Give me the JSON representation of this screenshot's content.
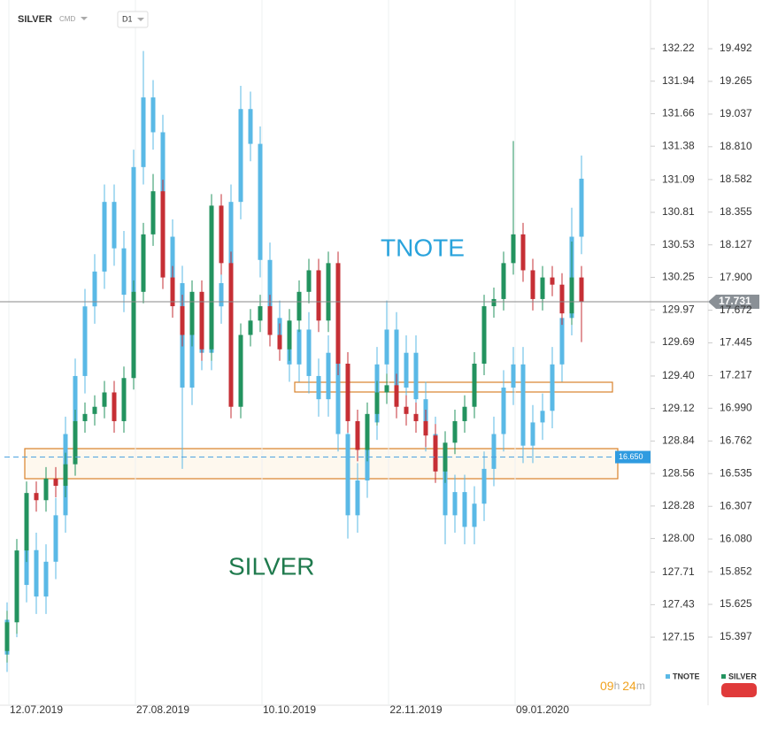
{
  "header": {
    "symbol": "SILVER",
    "market": "CMD",
    "interval": "D1"
  },
  "timer": {
    "hours": "09",
    "h": "h",
    "minutes": "24",
    "m": "m"
  },
  "chart_data": {
    "type": "candlestick",
    "categories": [
      null,
      null,
      null,
      "12.07.2019",
      null,
      null,
      null,
      null,
      null,
      null,
      null,
      null,
      null,
      null,
      null,
      null,
      "27.08.2019",
      null,
      null,
      null,
      null,
      null,
      null,
      null,
      null,
      null,
      null,
      null,
      null,
      "10.10.2019",
      null,
      null,
      null,
      null,
      null,
      null,
      null,
      null,
      null,
      null,
      null,
      null,
      "22.11.2019",
      null,
      null,
      null,
      null,
      null,
      null,
      null,
      null,
      null,
      null,
      null,
      null,
      "09.01.2020",
      null,
      null,
      null,
      null
    ],
    "ylim": [
      126.617,
      132.487
    ],
    "yticks": [
      132.22,
      131.94,
      131.66,
      131.38,
      131.09,
      130.81,
      130.53,
      130.25,
      129.97,
      129.69,
      {
        "value": 129.4,
        "label": "129.40"
      },
      129.12,
      128.84,
      128.56,
      128.28,
      {
        "value": 128,
        "label": "128.00"
      },
      127.71,
      127.43,
      127.15
    ],
    "y2lim": [
      14.966,
      19.708
    ],
    "y2ticks": [
      19.492,
      19.265,
      19.037,
      {
        "value": 18.81,
        "label": "18.810"
      },
      18.582,
      18.355,
      18.127,
      {
        "value": 17.9,
        "label": "17.900"
      },
      17.672,
      17.445,
      17.217,
      {
        "value": 16.99,
        "label": "16.990"
      },
      16.762,
      16.535,
      16.307,
      {
        "value": 16.08,
        "label": "16.080"
      },
      15.852,
      15.625,
      15.397
    ],
    "series": [
      {
        "name": "TNOTE",
        "axis": "y",
        "color": "#5ab9e6",
        "open": [
          127.0,
          127.3,
          127.6,
          127.9,
          127.5,
          127.8,
          128.2,
          128.9,
          129.4,
          130.0,
          130.3,
          130.9,
          130.5,
          130.1,
          131.2,
          131.8,
          131.5,
          130.6,
          130.2,
          129.3,
          129.8,
          129.6,
          130.2,
          130.0,
          130.9,
          131.7,
          131.4,
          130.4,
          129.9,
          129.7,
          129.5,
          129.8,
          129.4,
          129.2,
          129.6,
          128.9,
          128.2,
          128.5,
          129.0,
          129.5,
          129.8,
          129.3,
          129.6,
          129.2,
          128.9,
          128.7,
          128.2,
          128.4,
          128.1,
          128.3,
          128.6,
          128.9,
          129.3,
          129.5,
          128.8,
          129.0,
          129.1,
          129.5,
          129.9,
          130.6
        ],
        "high": [
          127.45,
          127.75,
          128.05,
          128.05,
          127.95,
          128.35,
          129.05,
          129.55,
          130.15,
          130.45,
          131.05,
          131.05,
          130.65,
          131.35,
          132.2,
          131.95,
          131.65,
          130.75,
          130.35,
          129.95,
          129.95,
          130.35,
          130.35,
          131.05,
          131.9,
          131.85,
          131.55,
          130.55,
          130.05,
          129.85,
          129.95,
          129.95,
          129.55,
          129.75,
          129.75,
          129.05,
          128.65,
          129.15,
          129.65,
          130.05,
          129.95,
          129.75,
          129.75,
          129.35,
          129.05,
          128.85,
          128.55,
          128.55,
          128.45,
          128.75,
          129.05,
          129.45,
          129.65,
          129.65,
          129.15,
          129.25,
          129.65,
          130.05,
          130.85,
          131.3
        ],
        "low": [
          126.85,
          127.15,
          127.45,
          127.35,
          127.35,
          127.65,
          128.05,
          128.75,
          129.25,
          129.85,
          130.15,
          130.35,
          129.95,
          129.95,
          131.05,
          131.35,
          130.45,
          130.05,
          128.6,
          129.15,
          129.45,
          129.45,
          129.85,
          129.85,
          130.75,
          131.25,
          130.25,
          129.75,
          129.55,
          129.35,
          129.35,
          129.25,
          129.05,
          129.05,
          128.75,
          128.0,
          128.05,
          128.35,
          128.85,
          129.35,
          129.15,
          129.15,
          129.05,
          128.75,
          128.55,
          127.95,
          128.05,
          127.95,
          127.95,
          128.15,
          128.45,
          128.75,
          129.15,
          128.65,
          128.65,
          128.85,
          128.95,
          129.35,
          129.75,
          130.45
        ],
        "close": [
          127.3,
          127.6,
          127.9,
          127.5,
          127.8,
          128.2,
          128.9,
          129.4,
          130.0,
          130.3,
          130.9,
          130.5,
          130.1,
          131.2,
          131.8,
          131.5,
          130.6,
          130.2,
          129.3,
          129.8,
          129.6,
          130.2,
          130.0,
          130.9,
          131.7,
          131.4,
          130.4,
          129.9,
          129.7,
          129.5,
          129.8,
          129.4,
          129.2,
          129.6,
          128.9,
          128.2,
          128.5,
          129.0,
          129.5,
          129.8,
          129.3,
          129.6,
          129.2,
          128.9,
          128.7,
          128.2,
          128.4,
          128.1,
          128.3,
          128.6,
          128.9,
          129.3,
          129.5,
          128.8,
          129.0,
          129.1,
          129.5,
          129.9,
          130.6,
          131.1
        ]
      },
      {
        "name": "SILVER",
        "axis": "y2",
        "up_color": "#23935f",
        "down_color": "#c62f35",
        "open": [
          15.3,
          15.5,
          16.0,
          16.4,
          16.35,
          16.5,
          16.45,
          16.6,
          16.9,
          16.95,
          17.0,
          17.1,
          16.9,
          17.2,
          17.8,
          18.2,
          18.5,
          17.9,
          17.7,
          17.5,
          17.8,
          17.4,
          18.4,
          18.0,
          17.0,
          17.5,
          17.6,
          17.7,
          17.5,
          17.4,
          17.6,
          17.8,
          17.95,
          17.6,
          18.0,
          17.3,
          16.9,
          16.7,
          16.95,
          17.1,
          17.15,
          17.0,
          16.95,
          16.9,
          16.8,
          16.55,
          16.75,
          16.9,
          17.0,
          17.3,
          17.7,
          17.75,
          18.0,
          18.2,
          17.95,
          17.75,
          17.9,
          17.85,
          17.65,
          17.9
        ],
        "high": [
          15.58,
          16.08,
          16.48,
          16.48,
          16.58,
          16.58,
          16.68,
          16.98,
          17.03,
          17.08,
          17.18,
          17.18,
          17.28,
          17.88,
          18.28,
          18.62,
          18.58,
          17.98,
          17.78,
          17.88,
          17.88,
          18.48,
          18.48,
          18.08,
          17.58,
          17.68,
          17.78,
          17.78,
          17.58,
          17.68,
          17.88,
          18.03,
          18.03,
          18.08,
          18.08,
          17.38,
          16.98,
          17.03,
          17.18,
          17.23,
          17.23,
          17.08,
          17.03,
          16.98,
          16.88,
          16.83,
          16.98,
          17.08,
          17.38,
          17.78,
          17.83,
          18.08,
          18.85,
          18.28,
          18.03,
          17.98,
          17.98,
          17.93,
          18.15,
          17.98
        ],
        "low": [
          15.22,
          15.42,
          15.92,
          16.27,
          16.27,
          16.37,
          16.37,
          16.52,
          16.82,
          16.87,
          16.92,
          16.82,
          16.82,
          17.12,
          17.72,
          18.12,
          17.82,
          17.62,
          17.42,
          17.42,
          17.32,
          17.32,
          17.92,
          16.92,
          16.92,
          17.42,
          17.52,
          17.42,
          17.32,
          17.32,
          17.52,
          17.72,
          17.52,
          17.52,
          17.22,
          16.82,
          16.62,
          16.62,
          16.87,
          17.02,
          16.92,
          16.87,
          16.82,
          16.72,
          16.47,
          16.47,
          16.67,
          16.82,
          16.92,
          17.22,
          17.62,
          17.67,
          17.92,
          17.87,
          17.67,
          17.67,
          17.77,
          17.57,
          17.57,
          17.45
        ],
        "close": [
          15.5,
          16.0,
          16.4,
          16.35,
          16.5,
          16.45,
          16.6,
          16.9,
          16.95,
          17.0,
          17.1,
          16.9,
          17.2,
          17.8,
          18.2,
          18.5,
          17.9,
          17.7,
          17.5,
          17.8,
          17.4,
          18.4,
          18.0,
          17.0,
          17.5,
          17.6,
          17.7,
          17.5,
          17.4,
          17.6,
          17.8,
          17.95,
          17.6,
          18.0,
          17.3,
          16.9,
          16.7,
          16.95,
          17.1,
          17.15,
          17.0,
          16.95,
          16.9,
          16.8,
          16.55,
          16.75,
          16.9,
          17.0,
          17.3,
          17.7,
          17.75,
          18.0,
          18.2,
          17.95,
          17.75,
          17.9,
          17.85,
          17.65,
          17.9,
          17.731
        ]
      }
    ],
    "last_price": 17.731,
    "horizontal_line": {
      "value": 16.65,
      "label": "16.650"
    },
    "annotations": [
      "TNOTE",
      "SILVER"
    ]
  }
}
